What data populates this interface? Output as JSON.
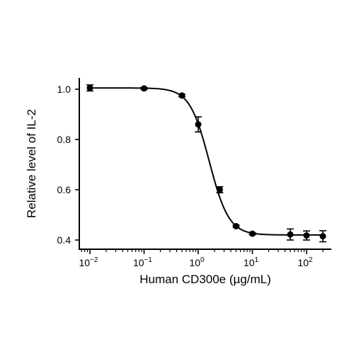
{
  "chart_data": {
    "type": "scatter",
    "title": "",
    "xlabel": "Human CD300e (µg/mL)",
    "ylabel": "Relative level of IL-2",
    "xscale": "log",
    "xlim": [
      0.007,
      250
    ],
    "ylim": [
      0.37,
      1.06
    ],
    "x_ticks": [
      0.01,
      0.1,
      1,
      10,
      100
    ],
    "x_tick_labels": [
      {
        "base": "10",
        "exp": "-2"
      },
      {
        "base": "10",
        "exp": "-1"
      },
      {
        "base": "10",
        "exp": "0"
      },
      {
        "base": "10",
        "exp": "1"
      },
      {
        "base": "10",
        "exp": "2"
      }
    ],
    "y_ticks": [
      0.4,
      0.6,
      0.8,
      1.0
    ],
    "y_tick_labels": [
      "0.4",
      "0.6",
      "0.8",
      "1.0"
    ],
    "grid": false,
    "series": [
      {
        "points": [
          {
            "x": 0.01,
            "y": 1.005,
            "err": 0.012
          },
          {
            "x": 0.1,
            "y": 1.003,
            "err": 0.004
          },
          {
            "x": 0.5,
            "y": 0.975,
            "err": 0.005
          },
          {
            "x": 1,
            "y": 0.86,
            "err": 0.03
          },
          {
            "x": 2.5,
            "y": 0.6,
            "err": 0.012
          },
          {
            "x": 5,
            "y": 0.455,
            "err": 0.004
          },
          {
            "x": 10,
            "y": 0.425,
            "err": 0.004
          },
          {
            "x": 50,
            "y": 0.422,
            "err": 0.022
          },
          {
            "x": 100,
            "y": 0.418,
            "err": 0.018
          },
          {
            "x": 200,
            "y": 0.415,
            "err": 0.022
          }
        ],
        "fit": {
          "model": "4PL",
          "top": 1.005,
          "bottom": 0.42,
          "ic50": 1.6,
          "hill": 2.4
        }
      }
    ]
  }
}
